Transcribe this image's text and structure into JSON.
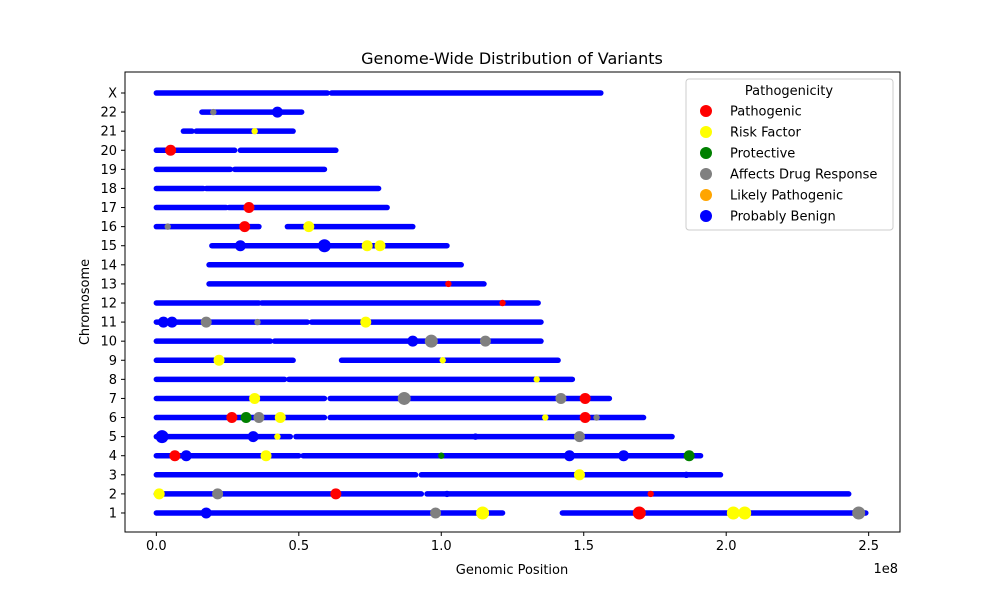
{
  "chart_data": {
    "type": "scatter",
    "title": "Genome-Wide Distribution of Variants",
    "xlabel": "Genomic Position",
    "ylabel": "Chromosome",
    "x_offset_label": "1e8",
    "xlim": [
      -11000000,
      261000000
    ],
    "x_ticks": [
      0,
      50000000,
      100000000,
      150000000,
      200000000,
      250000000
    ],
    "x_tick_labels": [
      "0.0",
      "0.5",
      "1.0",
      "1.5",
      "2.0",
      "2.5"
    ],
    "chromosomes": [
      "1",
      "2",
      "3",
      "4",
      "5",
      "6",
      "7",
      "8",
      "9",
      "10",
      "11",
      "12",
      "13",
      "14",
      "15",
      "16",
      "17",
      "18",
      "19",
      "20",
      "21",
      "22",
      "X"
    ],
    "legend": {
      "title": "Pathogenicity",
      "placement": "top-right",
      "entries": [
        {
          "label": "Pathogenic",
          "color": "#ff0000"
        },
        {
          "label": "Risk Factor",
          "color": "#ffff00"
        },
        {
          "label": "Protective",
          "color": "#008000"
        },
        {
          "label": "Affects Drug Response",
          "color": "#808080"
        },
        {
          "label": "Likely Pathogenic",
          "color": "#ffa500"
        },
        {
          "label": "Probably Benign",
          "color": "#0000ff"
        }
      ]
    },
    "benign_segments": [
      {
        "chrom": "1",
        "ranges": [
          [
            0,
            121500000
          ],
          [
            142500000,
            249000000
          ]
        ]
      },
      {
        "chrom": "2",
        "ranges": [
          [
            0,
            93000000
          ],
          [
            95000000,
            243000000
          ]
        ]
      },
      {
        "chrom": "3",
        "ranges": [
          [
            0,
            91000000
          ],
          [
            93000000,
            198000000
          ]
        ]
      },
      {
        "chrom": "4",
        "ranges": [
          [
            0,
            50000000
          ],
          [
            51500000,
            191000000
          ]
        ]
      },
      {
        "chrom": "5",
        "ranges": [
          [
            0,
            47000000
          ],
          [
            49000000,
            181000000
          ]
        ]
      },
      {
        "chrom": "6",
        "ranges": [
          [
            0,
            59000000
          ],
          [
            61000000,
            171000000
          ]
        ]
      },
      {
        "chrom": "7",
        "ranges": [
          [
            0,
            59000000
          ],
          [
            61000000,
            159000000
          ]
        ]
      },
      {
        "chrom": "8",
        "ranges": [
          [
            0,
            45000000
          ],
          [
            46500000,
            146000000
          ]
        ]
      },
      {
        "chrom": "9",
        "ranges": [
          [
            0,
            48000000
          ],
          [
            65000000,
            141000000
          ]
        ]
      },
      {
        "chrom": "10",
        "ranges": [
          [
            0,
            40000000
          ],
          [
            41500000,
            135000000
          ]
        ]
      },
      {
        "chrom": "11",
        "ranges": [
          [
            0,
            53000000
          ],
          [
            54500000,
            135000000
          ]
        ]
      },
      {
        "chrom": "12",
        "ranges": [
          [
            0,
            36000000
          ],
          [
            37000000,
            134000000
          ]
        ]
      },
      {
        "chrom": "13",
        "ranges": [
          [
            18500000,
            115000000
          ]
        ]
      },
      {
        "chrom": "14",
        "ranges": [
          [
            18500000,
            107000000
          ]
        ]
      },
      {
        "chrom": "15",
        "ranges": [
          [
            19500000,
            102000000
          ]
        ]
      },
      {
        "chrom": "16",
        "ranges": [
          [
            0,
            36000000
          ],
          [
            46000000,
            90000000
          ]
        ]
      },
      {
        "chrom": "17",
        "ranges": [
          [
            0,
            24500000
          ],
          [
            25500000,
            81000000
          ]
        ]
      },
      {
        "chrom": "18",
        "ranges": [
          [
            0,
            16500000
          ],
          [
            17500000,
            78000000
          ]
        ]
      },
      {
        "chrom": "19",
        "ranges": [
          [
            0,
            26000000
          ],
          [
            27500000,
            59000000
          ]
        ]
      },
      {
        "chrom": "20",
        "ranges": [
          [
            0,
            27500000
          ],
          [
            29500000,
            63000000
          ]
        ]
      },
      {
        "chrom": "21",
        "ranges": [
          [
            9500000,
            12500000
          ],
          [
            14000000,
            48000000
          ]
        ]
      },
      {
        "chrom": "22",
        "ranges": [
          [
            16000000,
            51000000
          ]
        ]
      },
      {
        "chrom": "X",
        "ranges": [
          [
            0,
            60000000
          ],
          [
            61500000,
            156000000
          ]
        ]
      }
    ],
    "variants": [
      {
        "chrom": "1",
        "x": 17500000,
        "cat": "Probably Benign",
        "size": "small"
      },
      {
        "chrom": "1",
        "x": 98000000,
        "cat": "Affects Drug Response",
        "size": "small"
      },
      {
        "chrom": "1",
        "x": 114500000,
        "cat": "Risk Factor",
        "size": "large"
      },
      {
        "chrom": "1",
        "x": 169500000,
        "cat": "Pathogenic",
        "size": "large"
      },
      {
        "chrom": "1",
        "x": 202500000,
        "cat": "Risk Factor",
        "size": "large"
      },
      {
        "chrom": "1",
        "x": 206500000,
        "cat": "Risk Factor",
        "size": "large"
      },
      {
        "chrom": "1",
        "x": 246500000,
        "cat": "Affects Drug Response",
        "size": "large"
      },
      {
        "chrom": "2",
        "x": 1000000,
        "cat": "Risk Factor",
        "size": "small"
      },
      {
        "chrom": "2",
        "x": 21500000,
        "cat": "Affects Drug Response",
        "size": "small"
      },
      {
        "chrom": "2",
        "x": 63000000,
        "cat": "Pathogenic",
        "size": "small"
      },
      {
        "chrom": "2",
        "x": 102000000,
        "cat": "Probably Benign",
        "size": "tiny"
      },
      {
        "chrom": "2",
        "x": 173500000,
        "cat": "Pathogenic",
        "size": "tiny"
      },
      {
        "chrom": "3",
        "x": 148500000,
        "cat": "Risk Factor",
        "size": "small"
      },
      {
        "chrom": "3",
        "x": 186000000,
        "cat": "Probably Benign",
        "size": "tiny"
      },
      {
        "chrom": "4",
        "x": 6500000,
        "cat": "Pathogenic",
        "size": "small"
      },
      {
        "chrom": "4",
        "x": 10500000,
        "cat": "Probably Benign",
        "size": "small"
      },
      {
        "chrom": "4",
        "x": 38500000,
        "cat": "Risk Factor",
        "size": "small"
      },
      {
        "chrom": "4",
        "x": 100000000,
        "cat": "Protective",
        "size": "tiny"
      },
      {
        "chrom": "4",
        "x": 145000000,
        "cat": "Probably Benign",
        "size": "small"
      },
      {
        "chrom": "4",
        "x": 164000000,
        "cat": "Probably Benign",
        "size": "small"
      },
      {
        "chrom": "4",
        "x": 187000000,
        "cat": "Protective",
        "size": "small"
      },
      {
        "chrom": "5",
        "x": 2000000,
        "cat": "Probably Benign",
        "size": "large"
      },
      {
        "chrom": "5",
        "x": 34000000,
        "cat": "Probably Benign",
        "size": "small"
      },
      {
        "chrom": "5",
        "x": 42500000,
        "cat": "Risk Factor",
        "size": "tiny"
      },
      {
        "chrom": "5",
        "x": 112000000,
        "cat": "Probably Benign",
        "size": "tiny"
      },
      {
        "chrom": "5",
        "x": 148500000,
        "cat": "Affects Drug Response",
        "size": "small"
      },
      {
        "chrom": "6",
        "x": 26500000,
        "cat": "Pathogenic",
        "size": "small"
      },
      {
        "chrom": "6",
        "x": 31500000,
        "cat": "Protective",
        "size": "small"
      },
      {
        "chrom": "6",
        "x": 36000000,
        "cat": "Affects Drug Response",
        "size": "small"
      },
      {
        "chrom": "6",
        "x": 43500000,
        "cat": "Risk Factor",
        "size": "small"
      },
      {
        "chrom": "6",
        "x": 136500000,
        "cat": "Risk Factor",
        "size": "tiny"
      },
      {
        "chrom": "6",
        "x": 150500000,
        "cat": "Pathogenic",
        "size": "small"
      },
      {
        "chrom": "6",
        "x": 154500000,
        "cat": "Affects Drug Response",
        "size": "tiny"
      },
      {
        "chrom": "7",
        "x": 34500000,
        "cat": "Risk Factor",
        "size": "small"
      },
      {
        "chrom": "7",
        "x": 87000000,
        "cat": "Affects Drug Response",
        "size": "large"
      },
      {
        "chrom": "7",
        "x": 142000000,
        "cat": "Affects Drug Response",
        "size": "small"
      },
      {
        "chrom": "7",
        "x": 150500000,
        "cat": "Pathogenic",
        "size": "small"
      },
      {
        "chrom": "8",
        "x": 133500000,
        "cat": "Risk Factor",
        "size": "tiny"
      },
      {
        "chrom": "9",
        "x": 22000000,
        "cat": "Risk Factor",
        "size": "small"
      },
      {
        "chrom": "9",
        "x": 100500000,
        "cat": "Risk Factor",
        "size": "tiny"
      },
      {
        "chrom": "10",
        "x": 90000000,
        "cat": "Probably Benign",
        "size": "small"
      },
      {
        "chrom": "10",
        "x": 96500000,
        "cat": "Affects Drug Response",
        "size": "large"
      },
      {
        "chrom": "10",
        "x": 115500000,
        "cat": "Affects Drug Response",
        "size": "small"
      },
      {
        "chrom": "11",
        "x": 2500000,
        "cat": "Probably Benign",
        "size": "small"
      },
      {
        "chrom": "11",
        "x": 5500000,
        "cat": "Probably Benign",
        "size": "small"
      },
      {
        "chrom": "11",
        "x": 17500000,
        "cat": "Affects Drug Response",
        "size": "small"
      },
      {
        "chrom": "11",
        "x": 35500000,
        "cat": "Affects Drug Response",
        "size": "tiny"
      },
      {
        "chrom": "11",
        "x": 73500000,
        "cat": "Risk Factor",
        "size": "small"
      },
      {
        "chrom": "12",
        "x": 121500000,
        "cat": "Pathogenic",
        "size": "tiny"
      },
      {
        "chrom": "13",
        "x": 102500000,
        "cat": "Pathogenic",
        "size": "tiny"
      },
      {
        "chrom": "15",
        "x": 29500000,
        "cat": "Probably Benign",
        "size": "small"
      },
      {
        "chrom": "15",
        "x": 59000000,
        "cat": "Probably Benign",
        "size": "large"
      },
      {
        "chrom": "15",
        "x": 74000000,
        "cat": "Risk Factor",
        "size": "small"
      },
      {
        "chrom": "15",
        "x": 78500000,
        "cat": "Risk Factor",
        "size": "small"
      },
      {
        "chrom": "16",
        "x": 4000000,
        "cat": "Affects Drug Response",
        "size": "tiny"
      },
      {
        "chrom": "16",
        "x": 31000000,
        "cat": "Pathogenic",
        "size": "small"
      },
      {
        "chrom": "16",
        "x": 53500000,
        "cat": "Risk Factor",
        "size": "small"
      },
      {
        "chrom": "17",
        "x": 32500000,
        "cat": "Pathogenic",
        "size": "small"
      },
      {
        "chrom": "20",
        "x": 5000000,
        "cat": "Pathogenic",
        "size": "small"
      },
      {
        "chrom": "21",
        "x": 34500000,
        "cat": "Risk Factor",
        "size": "tiny"
      },
      {
        "chrom": "22",
        "x": 20000000,
        "cat": "Affects Drug Response",
        "size": "tiny"
      },
      {
        "chrom": "22",
        "x": 42500000,
        "cat": "Probably Benign",
        "size": "small"
      }
    ]
  }
}
